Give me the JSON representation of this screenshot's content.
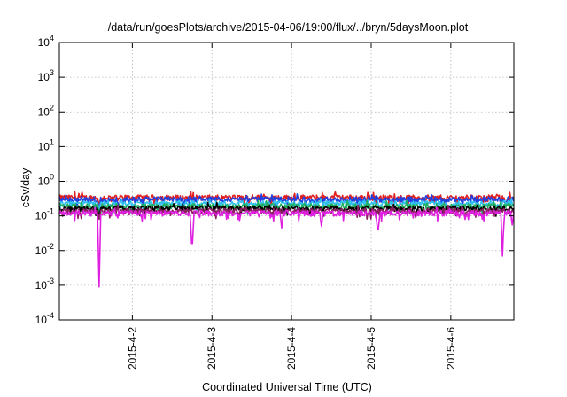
{
  "chart_data": {
    "type": "line",
    "title": "/data/run/goesPlots/archive/2015-04-06/19:00/flux/../bryn/5daysMoon.plot",
    "xlabel": "Coordinated Universal Time (UTC)",
    "ylabel": "cSv/day",
    "y_scale": "log",
    "ylim": [
      0.0001,
      10000
    ],
    "y_ticks": [
      {
        "base": "10",
        "exp": "-4"
      },
      {
        "base": "10",
        "exp": "-3"
      },
      {
        "base": "10",
        "exp": "-2"
      },
      {
        "base": "10",
        "exp": "-1"
      },
      {
        "base": "10",
        "exp": "0"
      },
      {
        "base": "10",
        "exp": "1"
      },
      {
        "base": "10",
        "exp": "2"
      },
      {
        "base": "10",
        "exp": "3"
      },
      {
        "base": "10",
        "exp": "4"
      }
    ],
    "x_start": "2015-04-01 02:00",
    "x_end": "2015-04-06 19:00",
    "x_ticks": [
      "2015-4-2",
      "2015-4-3",
      "2015-4-4",
      "2015-4-5",
      "2015-4-6"
    ],
    "x_tick_dates": [
      "2015-04-02 00:00",
      "2015-04-03 00:00",
      "2015-04-04 00:00",
      "2015-04-05 00:00",
      "2015-04-06 00:00"
    ],
    "grid": true,
    "legend": "none",
    "series": [
      {
        "color": "#e02020",
        "base": 0.34,
        "dips": [
          [
            "2015-04-01 14:00",
            0.2
          ],
          [
            "2015-04-06 16:30",
            0.2
          ]
        ]
      },
      {
        "color": "#2040e0",
        "base": 0.3,
        "dips": [
          [
            "2015-04-01 14:00",
            0.15
          ],
          [
            "2015-04-06 16:30",
            0.2
          ]
        ]
      },
      {
        "color": "#30c0f0",
        "base": 0.23,
        "dips": [
          [
            "2015-04-01 14:00",
            0.15
          ]
        ]
      },
      {
        "color": "#20b060",
        "base": 0.19,
        "dips": [
          [
            "2015-04-01 14:00",
            0.12
          ]
        ]
      },
      {
        "color": "#000000",
        "base": 0.165,
        "dips": [
          [
            "2015-04-01 14:00",
            0.1
          ]
        ]
      },
      {
        "color": "#8a2060",
        "base": 0.14,
        "dips": [
          [
            "2015-04-01 14:00",
            0.08
          ]
        ]
      },
      {
        "color": "#e020e0",
        "base": 0.12,
        "dips": [
          [
            "2015-04-01 14:00",
            0.0009
          ],
          [
            "2015-04-02 18:00",
            0.016
          ],
          [
            "2015-04-03 21:00",
            0.045
          ],
          [
            "2015-04-04 09:00",
            0.05
          ],
          [
            "2015-04-05 02:00",
            0.04
          ],
          [
            "2015-04-06 15:30",
            0.007
          ],
          [
            "2015-04-06 18:30",
            0.055
          ]
        ]
      }
    ]
  }
}
